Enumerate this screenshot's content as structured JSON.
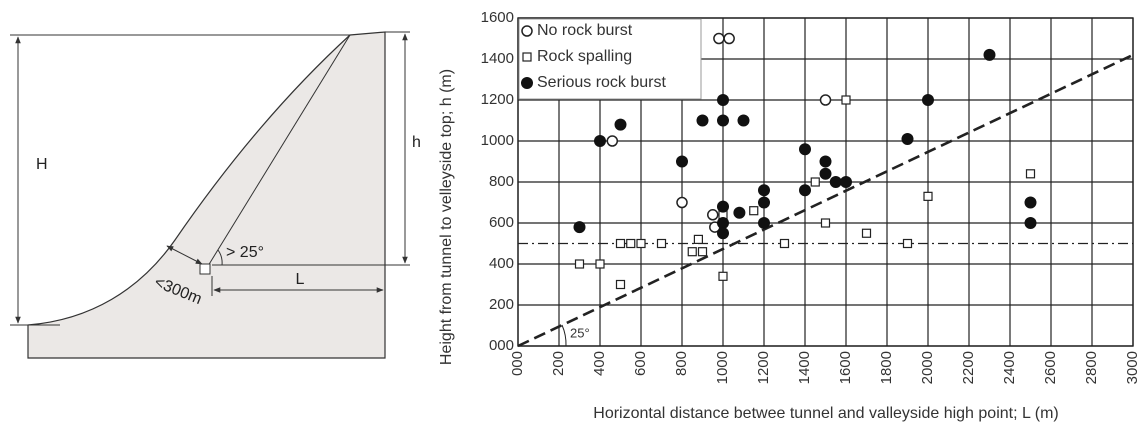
{
  "diagram": {
    "height_label": "H",
    "tunnel_height_label": "h",
    "angle_label": "> 25°",
    "cover_label": "<300m",
    "distance_label": "L"
  },
  "chart_data": {
    "type": "scatter",
    "x_label": "Horizontal distance betwee tunnel and valleyside high point; L (m)",
    "y_label": "Height from tunnel to velleyside top; h (m)",
    "angle_label": "25°",
    "xlim": [
      0,
      3000
    ],
    "ylim": [
      0,
      1600
    ],
    "xticks": [
      {
        "value": 0,
        "label": "000"
      },
      200,
      400,
      600,
      800,
      1000,
      1200,
      1400,
      1600,
      1800,
      2000,
      2200,
      2400,
      2600,
      2800,
      3000
    ],
    "yticks": [
      {
        "value": 0,
        "label": "000"
      },
      200,
      400,
      600,
      800,
      1000,
      1200,
      1400,
      1600
    ],
    "grid": true,
    "legend": "top-left",
    "trend_line": {
      "x": [
        0,
        3000
      ],
      "y": [
        0,
        1420
      ]
    },
    "threshold": 500,
    "series": [
      {
        "name": "No rock burst",
        "color": "#222222",
        "marker": "circle-open",
        "x": [
          460,
          800,
          950,
          960,
          980,
          1030,
          1500
        ],
        "y": [
          1000,
          700,
          640,
          580,
          1500,
          1500,
          1200
        ]
      },
      {
        "name": "Rock spalling",
        "color": "#222222",
        "marker": "square-open",
        "x": [
          300,
          400,
          500,
          550,
          600,
          500,
          700,
          850,
          880,
          900,
          1000,
          1000,
          1150,
          1300,
          1450,
          1500,
          1600,
          1700,
          1900,
          2000,
          2500
        ],
        "y": [
          400,
          400,
          500,
          500,
          500,
          300,
          500,
          460,
          520,
          460,
          340,
          640,
          660,
          500,
          800,
          600,
          1200,
          550,
          500,
          730,
          840
        ]
      },
      {
        "name": "Serious rock burst",
        "color": "#111111",
        "marker": "circle-filled",
        "x": [
          300,
          400,
          500,
          800,
          900,
          1000,
          1000,
          1100,
          1000,
          1000,
          1000,
          1080,
          1200,
          1200,
          1200,
          1400,
          1400,
          1500,
          1500,
          1550,
          1600,
          1900,
          2000,
          2300,
          2500,
          2500
        ],
        "y": [
          580,
          1000,
          1080,
          900,
          1100,
          1200,
          1100,
          1100,
          680,
          600,
          550,
          650,
          760,
          700,
          600,
          960,
          760,
          900,
          840,
          800,
          800,
          1010,
          1200,
          1420,
          700,
          600
        ]
      }
    ]
  }
}
